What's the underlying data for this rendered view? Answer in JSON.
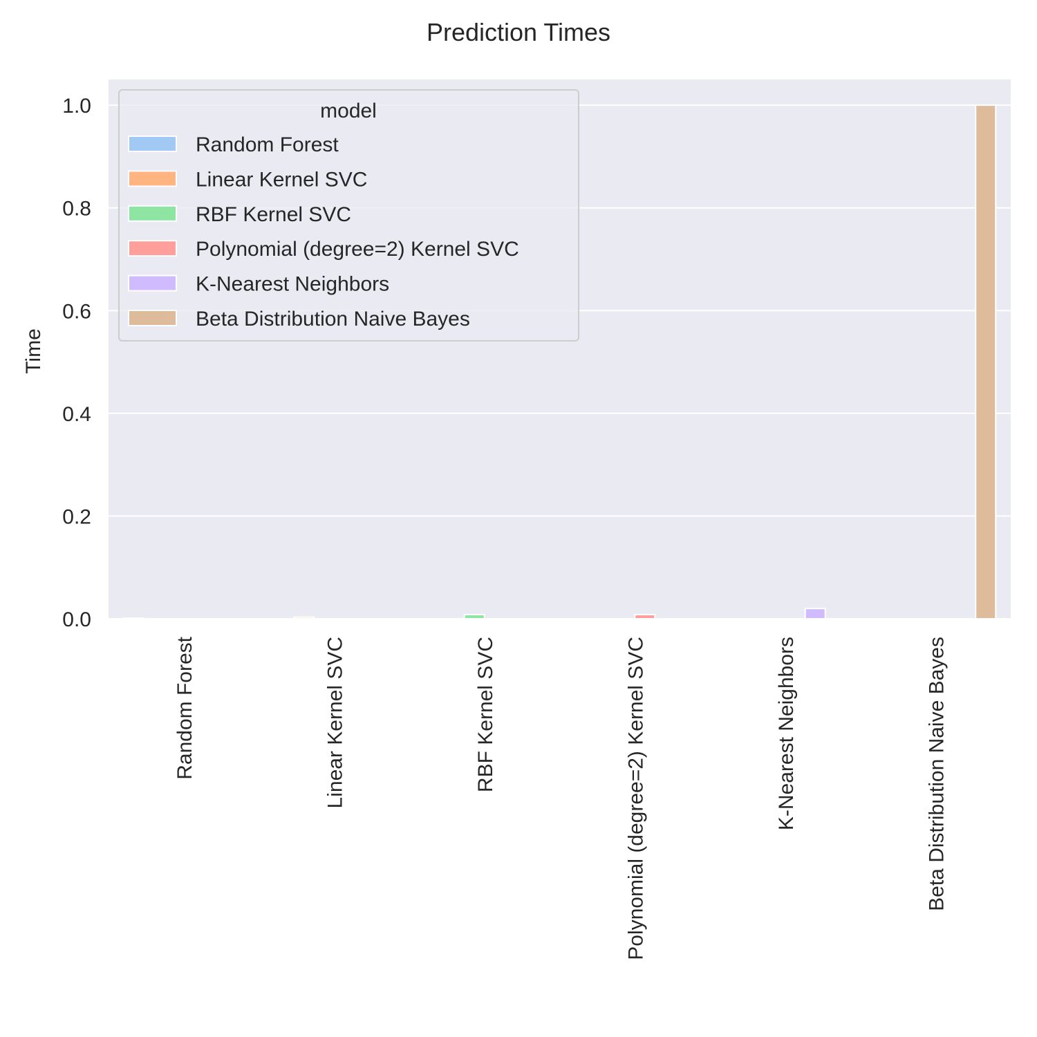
{
  "chart_data": {
    "type": "bar",
    "title": "Prediction Times",
    "xlabel": "",
    "ylabel": "Time",
    "ylim": [
      0,
      1.05
    ],
    "yticks": [
      0.0,
      0.2,
      0.4,
      0.6,
      0.8,
      1.0
    ],
    "ytick_labels": [
      "0.0",
      "0.2",
      "0.4",
      "0.6",
      "0.8",
      "1.0"
    ],
    "grid": true,
    "legend_title": "model",
    "legend_position": "top-left",
    "categories": [
      "Random Forest",
      "Linear Kernel SVC",
      "RBF Kernel SVC",
      "Polynomial (degree=2) Kernel SVC",
      "K-Nearest Neighbors",
      "Beta Distribution Naive Bayes"
    ],
    "series": [
      {
        "name": "Random Forest",
        "color": "#a1c9f4",
        "values": [
          0.001,
          null,
          null,
          null,
          null,
          null
        ]
      },
      {
        "name": "Linear Kernel SVC",
        "color": "#ffb482",
        "values": [
          null,
          0.003,
          null,
          null,
          null,
          null
        ]
      },
      {
        "name": "RBF Kernel SVC",
        "color": "#8de5a1",
        "values": [
          null,
          null,
          0.008,
          null,
          null,
          null
        ]
      },
      {
        "name": "Polynomial (degree=2) Kernel SVC",
        "color": "#ff9f9b",
        "values": [
          null,
          null,
          null,
          0.008,
          null,
          null
        ]
      },
      {
        "name": "K-Nearest Neighbors",
        "color": "#d0bbff",
        "values": [
          null,
          null,
          null,
          null,
          0.02,
          null
        ]
      },
      {
        "name": "Beta Distribution Naive Bayes",
        "color": "#debb9b",
        "values": [
          null,
          null,
          null,
          null,
          null,
          1.0
        ]
      }
    ],
    "colors": {
      "plot_background": "#eaeaf2",
      "grid": "#ffffff",
      "text": "#262626"
    }
  }
}
